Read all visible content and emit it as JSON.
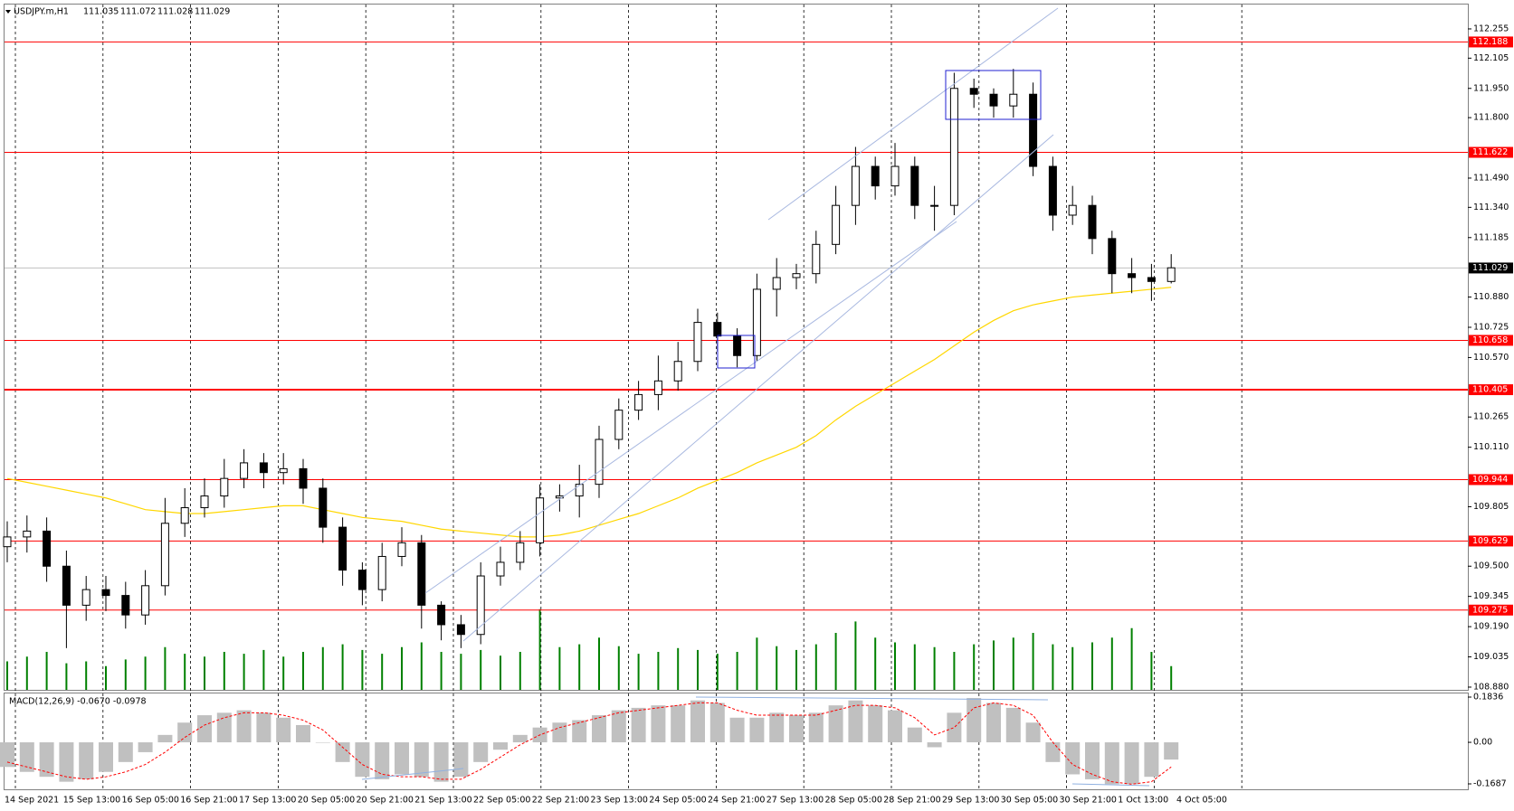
{
  "chart_data": {
    "type": "candlestick",
    "symbol": "USDJPY.m,H1",
    "quote": [
      111.035,
      111.072,
      111.028,
      111.029
    ],
    "time_labels": [
      "14 Sep 2021",
      "15 Sep 13:00",
      "16 Sep 05:00",
      "16 Sep 21:00",
      "17 Sep 13:00",
      "20 Sep 05:00",
      "20 Sep 21:00",
      "21 Sep 13:00",
      "22 Sep 05:00",
      "22 Sep 21:00",
      "23 Sep 13:00",
      "24 Sep 05:00",
      "24 Sep 21:00",
      "27 Sep 13:00",
      "28 Sep 05:00",
      "28 Sep 21:00",
      "29 Sep 13:00",
      "30 Sep 05:00",
      "30 Sep 21:00",
      "1 Oct 13:00",
      "4 Oct 05:00"
    ],
    "open": [
      109.6,
      109.65,
      109.68,
      109.5,
      109.3,
      109.38,
      109.35,
      109.25,
      109.4,
      109.72,
      109.8,
      109.86,
      109.95,
      110.03,
      109.98,
      110.0,
      109.9,
      109.7,
      109.48,
      109.38,
      109.55,
      109.62,
      109.3,
      109.2,
      109.15,
      109.45,
      109.52,
      109.62,
      109.85,
      109.86,
      109.92,
      110.15,
      110.3,
      110.38,
      110.45,
      110.55,
      110.75,
      110.68,
      110.58,
      110.92,
      110.98,
      111.0,
      111.15,
      111.35,
      111.55,
      111.45,
      111.55,
      111.35,
      111.35,
      111.95,
      111.92,
      111.86,
      111.92,
      111.55,
      111.3,
      111.35,
      111.18,
      111.0,
      110.98,
      110.96
    ],
    "high": [
      109.73,
      109.76,
      109.75,
      109.58,
      109.45,
      109.45,
      109.42,
      109.48,
      109.85,
      109.9,
      109.95,
      110.05,
      110.1,
      110.08,
      110.08,
      110.05,
      109.95,
      109.75,
      109.52,
      109.62,
      109.7,
      109.66,
      109.32,
      109.25,
      109.52,
      109.6,
      109.68,
      109.92,
      109.92,
      110.02,
      110.22,
      110.36,
      110.45,
      110.58,
      110.65,
      110.82,
      110.8,
      110.72,
      111.0,
      111.08,
      111.05,
      111.22,
      111.45,
      111.65,
      111.6,
      111.67,
      111.6,
      111.45,
      112.03,
      112.0,
      111.95,
      112.05,
      111.98,
      111.6,
      111.45,
      111.4,
      111.22,
      111.08,
      111.05,
      111.1
    ],
    "low": [
      109.52,
      109.57,
      109.42,
      109.08,
      109.22,
      109.27,
      109.18,
      109.2,
      109.35,
      109.65,
      109.75,
      109.8,
      109.9,
      109.9,
      109.92,
      109.82,
      109.62,
      109.4,
      109.3,
      109.32,
      109.5,
      109.18,
      109.12,
      109.08,
      109.1,
      109.4,
      109.48,
      109.55,
      109.78,
      109.75,
      109.85,
      110.1,
      110.25,
      110.3,
      110.4,
      110.5,
      110.6,
      110.52,
      110.55,
      110.78,
      110.92,
      110.95,
      111.1,
      111.25,
      111.38,
      111.4,
      111.28,
      111.22,
      111.3,
      111.85,
      111.8,
      111.8,
      111.5,
      111.22,
      111.25,
      111.1,
      110.9,
      110.9,
      110.86,
      110.95
    ],
    "close": [
      109.65,
      109.68,
      109.5,
      109.3,
      109.38,
      109.35,
      109.25,
      109.4,
      109.72,
      109.8,
      109.86,
      109.95,
      110.03,
      109.98,
      110.0,
      109.9,
      109.7,
      109.48,
      109.38,
      109.55,
      109.62,
      109.3,
      109.2,
      109.15,
      109.45,
      109.52,
      109.62,
      109.85,
      109.86,
      109.92,
      110.15,
      110.3,
      110.38,
      110.45,
      110.55,
      110.75,
      110.68,
      110.58,
      110.92,
      110.98,
      111.0,
      111.15,
      111.35,
      111.55,
      111.45,
      111.55,
      111.35,
      111.35,
      111.95,
      111.92,
      111.86,
      111.92,
      111.55,
      111.3,
      111.35,
      111.18,
      111.0,
      110.98,
      110.96,
      111.03
    ],
    "volume": [
      30,
      35,
      40,
      28,
      30,
      25,
      32,
      35,
      45,
      38,
      35,
      40,
      38,
      42,
      35,
      40,
      45,
      48,
      42,
      38,
      45,
      50,
      40,
      38,
      42,
      36,
      40,
      85,
      45,
      48,
      55,
      46,
      38,
      40,
      44,
      42,
      38,
      40,
      55,
      46,
      42,
      48,
      60,
      72,
      55,
      50,
      48,
      45,
      40,
      48,
      52,
      55,
      60,
      48,
      45,
      50,
      55,
      65,
      40,
      25
    ],
    "ma": [
      109.95,
      109.93,
      109.91,
      109.89,
      109.87,
      109.85,
      109.82,
      109.79,
      109.78,
      109.77,
      109.77,
      109.78,
      109.79,
      109.8,
      109.81,
      109.81,
      109.79,
      109.77,
      109.75,
      109.74,
      109.73,
      109.71,
      109.69,
      109.68,
      109.67,
      109.66,
      109.65,
      109.65,
      109.66,
      109.68,
      109.71,
      109.74,
      109.77,
      109.81,
      109.85,
      109.9,
      109.94,
      109.98,
      110.03,
      110.07,
      110.11,
      110.17,
      110.25,
      110.32,
      110.38,
      110.44,
      110.5,
      110.56,
      110.63,
      110.7,
      110.76,
      110.81,
      110.84,
      110.86,
      110.88,
      110.89,
      110.9,
      110.91,
      110.92,
      110.93
    ],
    "ylim": [
      108.866,
      112.38
    ],
    "yticks": [
      112.255,
      112.105,
      {
        "value": 111.95,
        "label": "111.950"
      },
      {
        "value": 111.8,
        "label": "111.800"
      },
      {
        "value": 111.49,
        "label": "111.490"
      },
      {
        "value": 111.34,
        "label": "111.340"
      },
      111.185,
      {
        "value": 110.88,
        "label": "110.880"
      },
      110.725,
      {
        "value": 110.57,
        "label": "110.570"
      },
      110.265,
      {
        "value": 110.11,
        "label": "110.110"
      },
      109.805,
      {
        "value": 109.5,
        "label": "109.500"
      },
      109.345,
      {
        "value": 109.19,
        "label": "109.190"
      },
      109.035,
      {
        "value": 108.88,
        "label": "108.880"
      }
    ],
    "levels": [
      112.188,
      111.622,
      110.658,
      110.405,
      109.944,
      109.629,
      109.275
    ],
    "current_price": 111.029,
    "colors": {
      "level": "#ff0000",
      "ma": "#ffd700",
      "volume": "#008000",
      "histogram": "#c0c0c0",
      "signal": "#ff0000"
    },
    "macd": {
      "legend": "MACD(12,26,9) -0.0670 -0.0978",
      "histogram": [
        -0.1,
        -0.12,
        -0.14,
        -0.16,
        -0.15,
        -0.12,
        -0.08,
        -0.04,
        0.03,
        0.08,
        0.11,
        0.12,
        0.13,
        0.12,
        0.1,
        0.07,
        0.0,
        -0.08,
        -0.14,
        -0.15,
        -0.13,
        -0.14,
        -0.16,
        -0.14,
        -0.08,
        -0.03,
        0.03,
        0.06,
        0.08,
        0.09,
        0.11,
        0.13,
        0.14,
        0.15,
        0.15,
        0.17,
        0.16,
        0.1,
        0.1,
        0.12,
        0.11,
        0.12,
        0.15,
        0.17,
        0.15,
        0.13,
        0.06,
        -0.02,
        0.12,
        0.18,
        0.16,
        0.14,
        0.08,
        -0.08,
        -0.13,
        -0.15,
        -0.17,
        -0.17,
        -0.14,
        -0.07
      ],
      "signal": [
        -0.08,
        -0.1,
        -0.12,
        -0.14,
        -0.15,
        -0.14,
        -0.12,
        -0.09,
        -0.04,
        0.02,
        0.07,
        0.1,
        0.12,
        0.12,
        0.11,
        0.09,
        0.05,
        -0.02,
        -0.09,
        -0.13,
        -0.14,
        -0.14,
        -0.15,
        -0.15,
        -0.11,
        -0.06,
        -0.01,
        0.03,
        0.06,
        0.08,
        0.1,
        0.12,
        0.13,
        0.14,
        0.15,
        0.16,
        0.16,
        0.13,
        0.11,
        0.11,
        0.11,
        0.11,
        0.13,
        0.15,
        0.15,
        0.14,
        0.1,
        0.03,
        0.06,
        0.14,
        0.16,
        0.15,
        0.11,
        0.0,
        -0.09,
        -0.13,
        -0.16,
        -0.17,
        -0.16,
        -0.1
      ],
      "ylim": [
        -0.1907,
        0.1983
      ],
      "yticks": [
        0.1836,
        {
          "value": 0,
          "label": "0.00"
        },
        -0.1687
      ]
    }
  }
}
